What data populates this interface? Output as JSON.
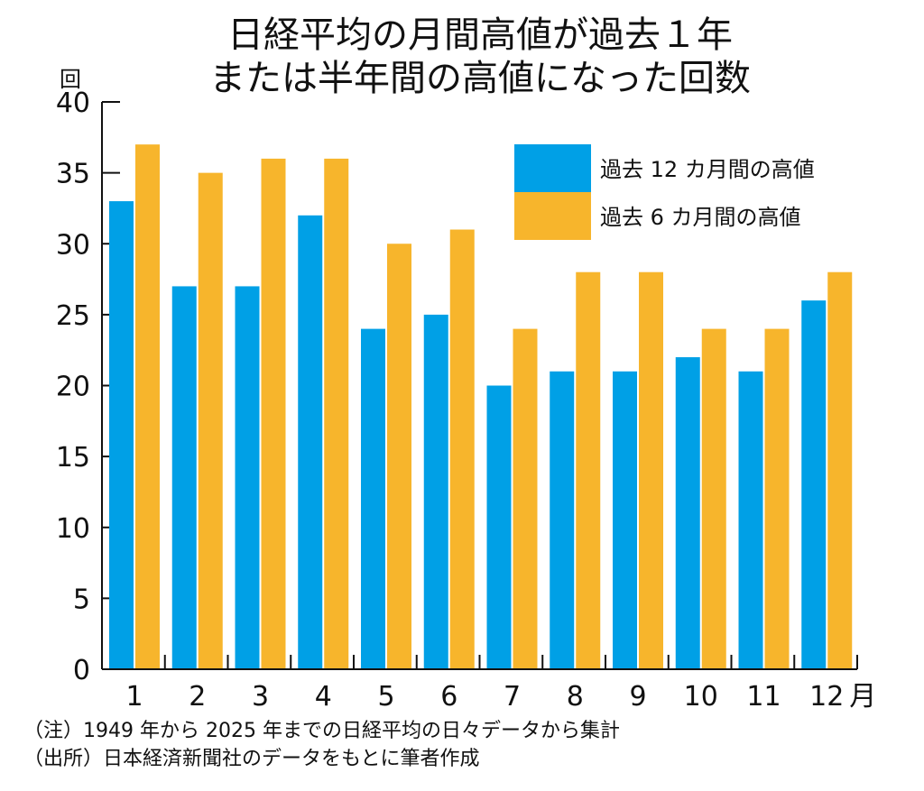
{
  "chart_data": {
    "type": "bar",
    "title": [
      "日経平均の月間高値が過去１年",
      "または半年間の高値になった回数"
    ],
    "ylabel": "回",
    "xlabel": "月",
    "ylim": [
      0,
      40
    ],
    "yticks": [
      0,
      5,
      10,
      15,
      20,
      25,
      30,
      35,
      40
    ],
    "categories": [
      "1",
      "2",
      "3",
      "4",
      "5",
      "6",
      "7",
      "8",
      "9",
      "10",
      "11",
      "12"
    ],
    "series": [
      {
        "name": "過去 12 カ月間の高値",
        "color": "#00a0e6",
        "values": [
          33,
          27,
          27,
          32,
          24,
          25,
          20,
          21,
          21,
          22,
          21,
          26
        ]
      },
      {
        "name": "過去 6 カ月間の高値",
        "color": "#f7b52c",
        "values": [
          37,
          35,
          36,
          36,
          30,
          31,
          24,
          28,
          28,
          24,
          24,
          28
        ]
      }
    ],
    "legend_position": "top-right",
    "grid": false
  },
  "notes": [
    "（注）1949 年から 2025 年までの日経平均の日々データから集計",
    "（出所）日本経済新聞社のデータをもとに筆者作成"
  ]
}
